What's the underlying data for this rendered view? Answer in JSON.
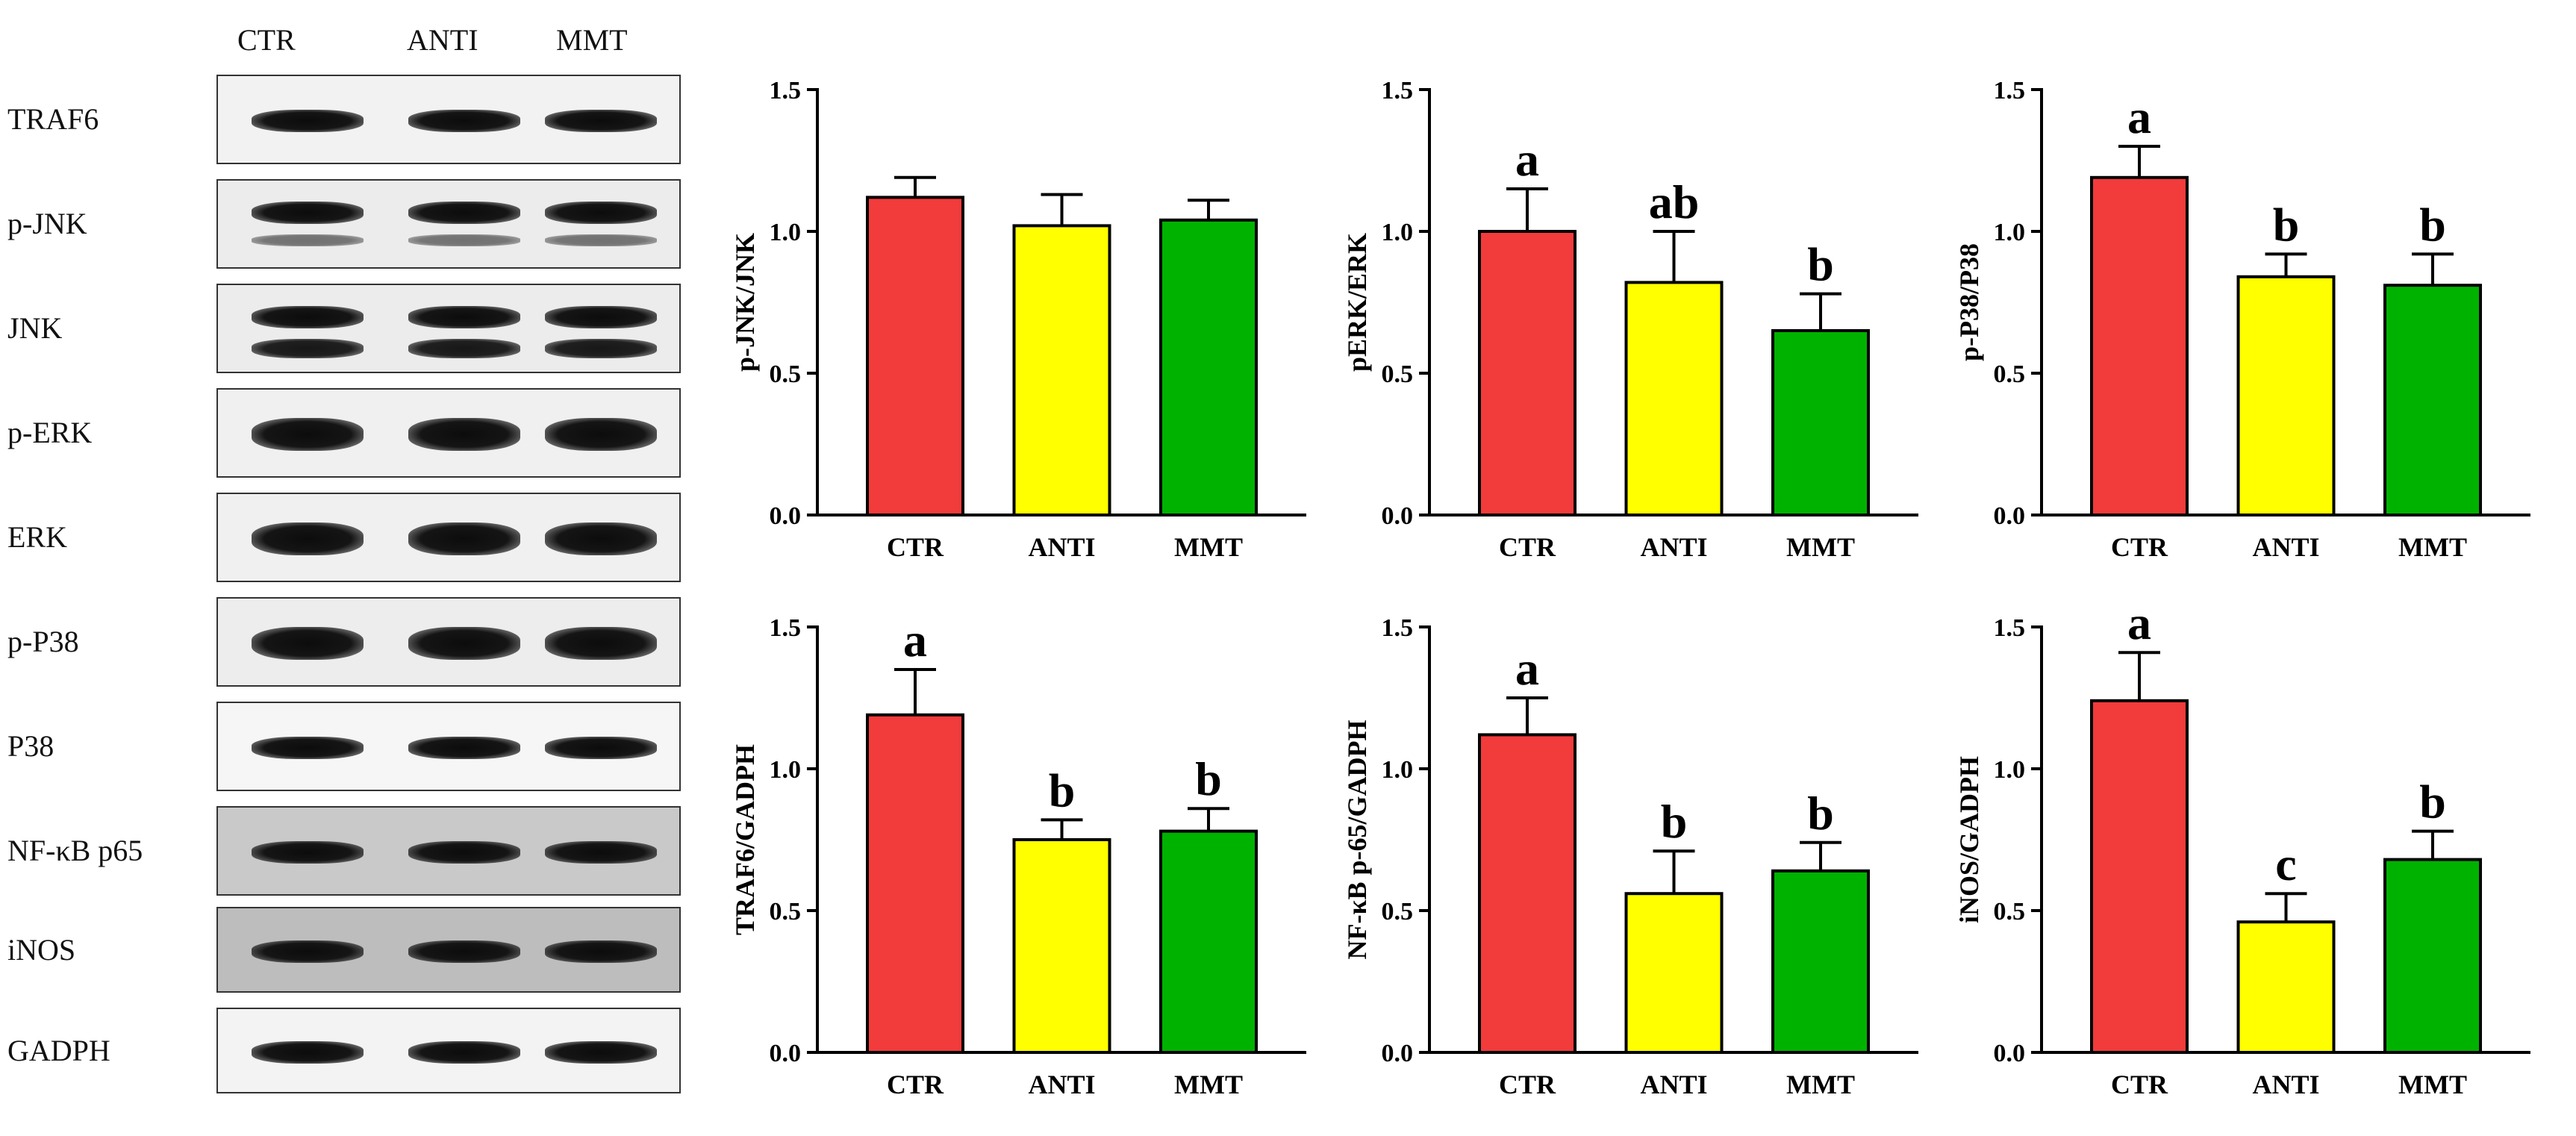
{
  "blot_panel": {
    "lanes": [
      "CTR",
      "ANTI",
      "MMT"
    ],
    "proteins": [
      "TRAF6",
      "p-JNK",
      "JNK",
      "p-ERK",
      "ERK",
      "p-P38",
      "P38",
      "NF-κB p65",
      "iNOS",
      "GADPH"
    ]
  },
  "colors": {
    "CTR": "#f23b3b",
    "ANTI": "#ffff00",
    "MMT": "#00b200"
  },
  "chart_data": [
    {
      "type": "bar",
      "categories": [
        "CTR",
        "ANTI",
        "MMT"
      ],
      "values": [
        1.12,
        1.02,
        1.04
      ],
      "errors": [
        0.07,
        0.11,
        0.07
      ],
      "letters": [
        "",
        "",
        ""
      ],
      "ylabel": "p-JNK/JNK",
      "ylim": [
        0,
        1.5
      ],
      "yticks": [
        "0.0",
        "0.5",
        "1.0",
        "1.5"
      ]
    },
    {
      "type": "bar",
      "categories": [
        "CTR",
        "ANTI",
        "MMT"
      ],
      "values": [
        1.0,
        0.82,
        0.65
      ],
      "errors": [
        0.15,
        0.18,
        0.13
      ],
      "letters": [
        "a",
        "ab",
        "b"
      ],
      "ylabel": "pERK/ERK",
      "ylim": [
        0,
        1.5
      ],
      "yticks": [
        "0.0",
        "0.5",
        "1.0",
        "1.5"
      ]
    },
    {
      "type": "bar",
      "categories": [
        "CTR",
        "ANTI",
        "MMT"
      ],
      "values": [
        1.19,
        0.84,
        0.81
      ],
      "errors": [
        0.11,
        0.08,
        0.11
      ],
      "letters": [
        "a",
        "b",
        "b"
      ],
      "ylabel": "p-P38/P38",
      "ylim": [
        0,
        1.5
      ],
      "yticks": [
        "0.0",
        "0.5",
        "1.0",
        "1.5"
      ]
    },
    {
      "type": "bar",
      "categories": [
        "CTR",
        "ANTI",
        "MMT"
      ],
      "values": [
        1.19,
        0.75,
        0.78
      ],
      "errors": [
        0.16,
        0.07,
        0.08
      ],
      "letters": [
        "a",
        "b",
        "b"
      ],
      "ylabel": "TRAF6/GADPH",
      "ylim": [
        0,
        1.5
      ],
      "yticks": [
        "0.0",
        "0.5",
        "1.0",
        "1.5"
      ]
    },
    {
      "type": "bar",
      "categories": [
        "CTR",
        "ANTI",
        "MMT"
      ],
      "values": [
        1.12,
        0.56,
        0.64
      ],
      "errors": [
        0.13,
        0.15,
        0.1
      ],
      "letters": [
        "a",
        "b",
        "b"
      ],
      "ylabel": "NF-κB p-65/GADPH",
      "ylim": [
        0,
        1.5
      ],
      "yticks": [
        "0.0",
        "0.5",
        "1.0",
        "1.5"
      ]
    },
    {
      "type": "bar",
      "categories": [
        "CTR",
        "ANTI",
        "MMT"
      ],
      "values": [
        1.24,
        0.46,
        0.68
      ],
      "errors": [
        0.17,
        0.1,
        0.1
      ],
      "letters": [
        "a",
        "c",
        "b"
      ],
      "ylabel": "iNOS/GADPH",
      "ylim": [
        0,
        1.5
      ],
      "yticks": [
        "0.0",
        "0.5",
        "1.0",
        "1.5"
      ]
    }
  ]
}
